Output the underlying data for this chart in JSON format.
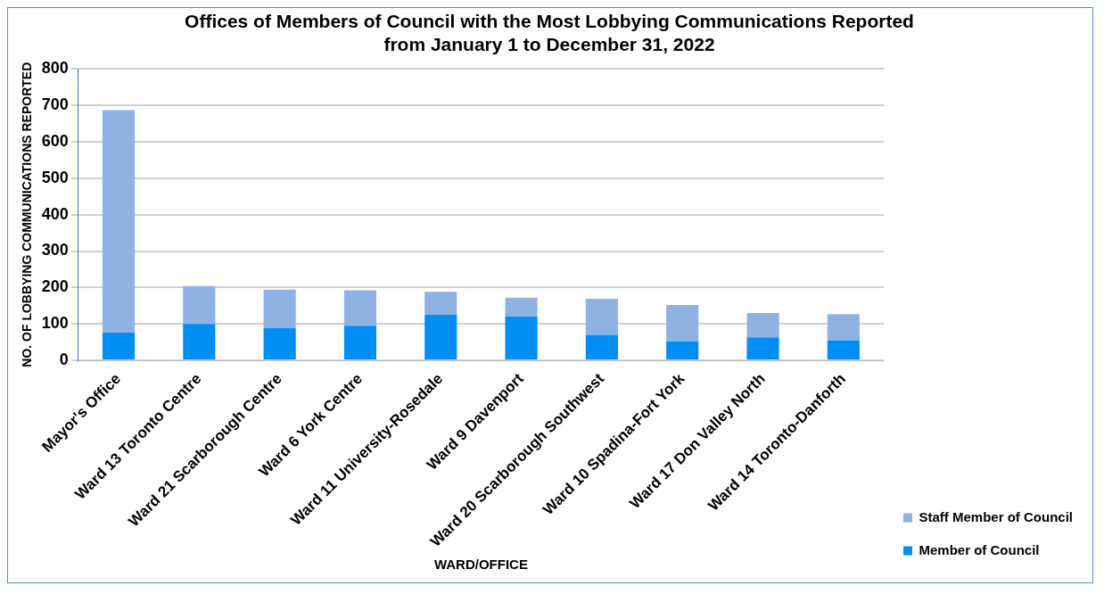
{
  "chart_data": {
    "type": "bar",
    "title": [
      "Offices of Members of Council with the Most Lobbying Communications Reported",
      "from January 1 to December 31, 2022"
    ],
    "xlabel": "WARD/OFFICE",
    "ylabel": "NO. OF LOBBYING COMMUNICATIONS REPORTED",
    "categories": [
      "Mayor's Office",
      "Ward 13 Toronto Centre",
      "Ward 21 Scarborough Centre",
      "Ward 6 York Centre",
      "Ward 11 University-Rosedale",
      "Ward 9 Davenport",
      "Ward 20 Scarborough Southwest",
      "Ward 10 Spadina-Fort York",
      "Ward 17 Don Valley North",
      "Ward 14 Toronto-Danforth"
    ],
    "stacked": true,
    "series": [
      {
        "name": "Member of Council",
        "color": "#008ef5",
        "values": [
          76,
          100,
          89,
          95,
          125,
          120,
          70,
          52,
          63,
          55
        ]
      },
      {
        "name": "Staff Member of Council",
        "color": "#8eb2e2",
        "values": [
          611,
          104,
          105,
          97,
          63,
          52,
          99,
          100,
          67,
          72
        ]
      }
    ],
    "ylim": [
      0,
      800
    ],
    "yticks": [
      0,
      100,
      200,
      300,
      400,
      500,
      600,
      700,
      800
    ],
    "grid": "y",
    "legend": "bottom right"
  }
}
